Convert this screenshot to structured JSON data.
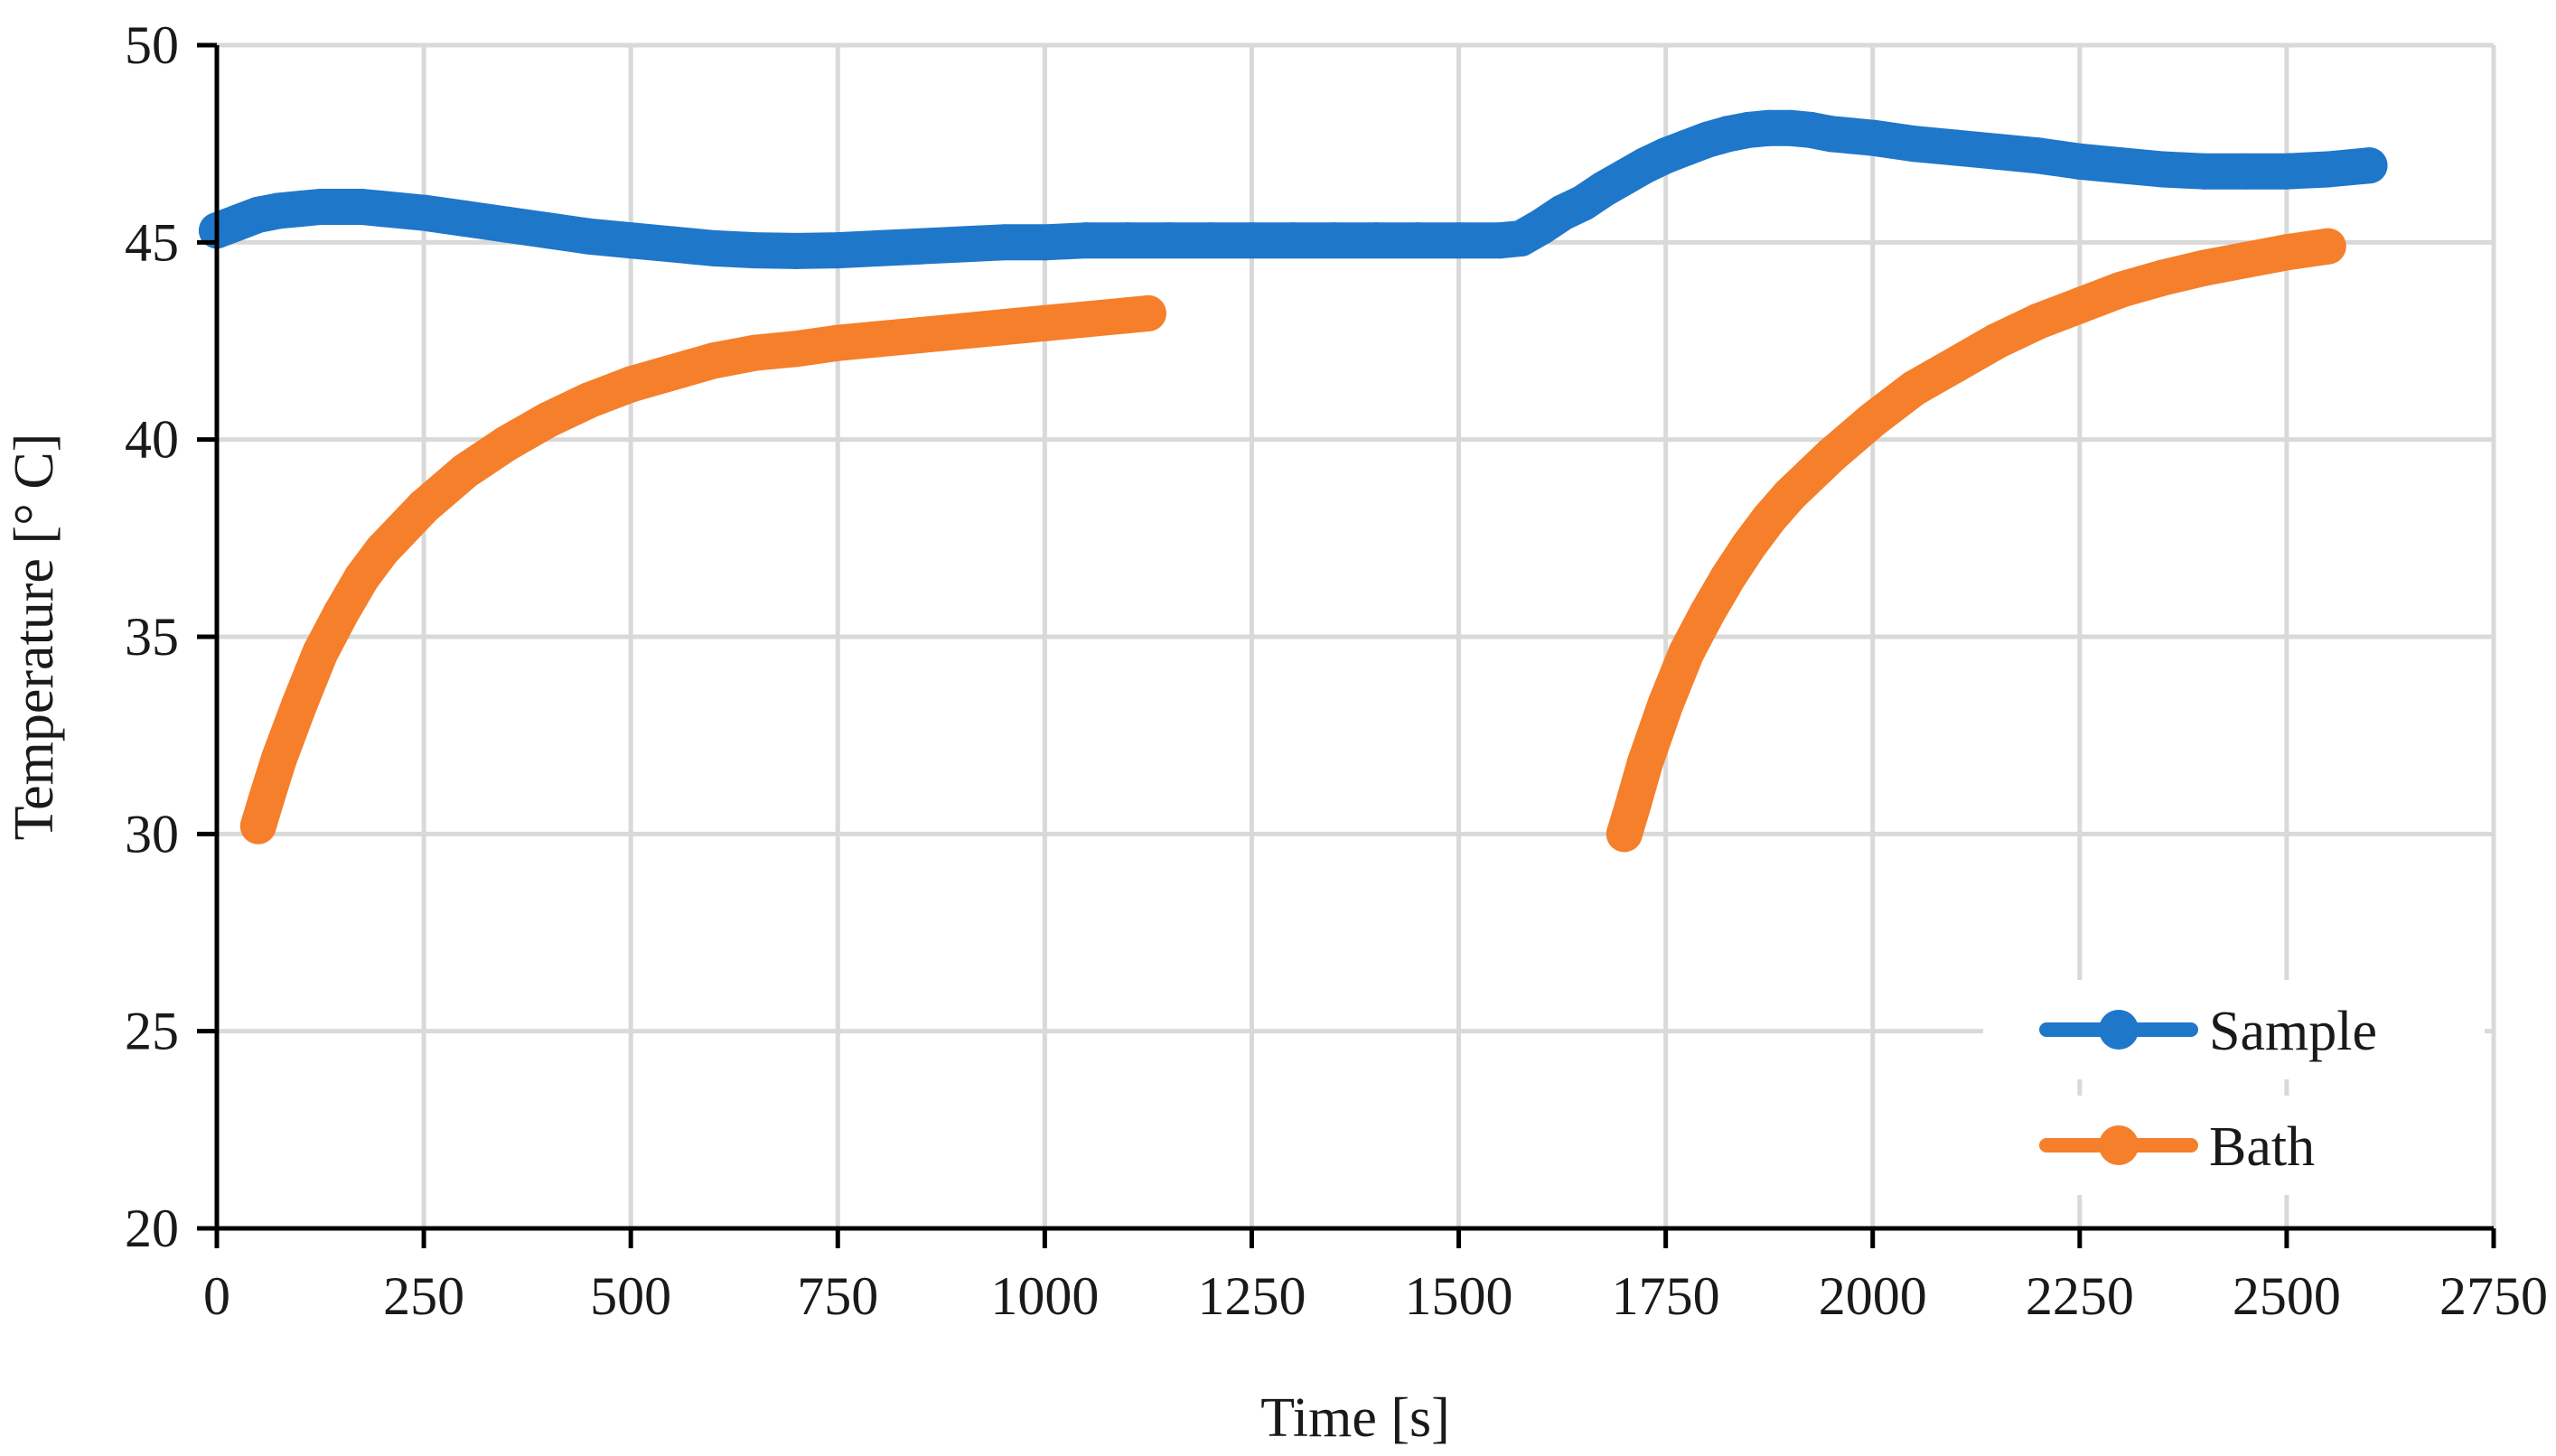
{
  "chart_data": {
    "type": "line",
    "xlabel": "Time [s]",
    "ylabel": "Temperature [° C]",
    "xlim": [
      0,
      2750
    ],
    "ylim": [
      20,
      50
    ],
    "xticks": [
      0,
      250,
      500,
      750,
      1000,
      1250,
      1500,
      1750,
      2000,
      2250,
      2500,
      2750
    ],
    "yticks": [
      20,
      25,
      30,
      35,
      40,
      45,
      50
    ],
    "grid": true,
    "legend_position": "bottom-right",
    "series": [
      {
        "name": "Sample",
        "color": "#1f77c9",
        "x": [
          0,
          25,
          50,
          75,
          100,
          125,
          150,
          175,
          200,
          250,
          300,
          350,
          400,
          450,
          500,
          550,
          600,
          650,
          700,
          750,
          800,
          850,
          900,
          950,
          1000,
          1050,
          1100,
          1150,
          1200,
          1250,
          1300,
          1350,
          1400,
          1450,
          1500,
          1550,
          1575,
          1600,
          1625,
          1650,
          1675,
          1700,
          1725,
          1750,
          1775,
          1800,
          1825,
          1850,
          1875,
          1900,
          1925,
          1950,
          1975,
          2000,
          2050,
          2100,
          2150,
          2200,
          2250,
          2300,
          2350,
          2400,
          2450,
          2500,
          2550,
          2600
        ],
        "y": [
          45.3,
          45.5,
          45.7,
          45.8,
          45.85,
          45.9,
          45.9,
          45.9,
          45.85,
          45.75,
          45.6,
          45.45,
          45.3,
          45.15,
          45.05,
          44.95,
          44.85,
          44.8,
          44.78,
          44.8,
          44.85,
          44.9,
          44.95,
          45.0,
          45.0,
          45.05,
          45.05,
          45.05,
          45.05,
          45.05,
          45.05,
          45.05,
          45.05,
          45.05,
          45.05,
          45.05,
          45.1,
          45.4,
          45.75,
          46.0,
          46.35,
          46.65,
          46.95,
          47.2,
          47.4,
          47.6,
          47.75,
          47.85,
          47.9,
          47.9,
          47.85,
          47.75,
          47.7,
          47.65,
          47.5,
          47.4,
          47.3,
          47.2,
          47.05,
          46.95,
          46.85,
          46.8,
          46.8,
          46.8,
          46.85,
          46.95
        ]
      },
      {
        "name": "Bath",
        "color": "#f57f2a",
        "x": [
          50,
          60,
          75,
          100,
          125,
          150,
          175,
          200,
          250,
          300,
          350,
          400,
          450,
          500,
          550,
          600,
          650,
          700,
          750,
          800,
          850,
          900,
          950,
          1000,
          1050,
          1100,
          1125,
          null,
          1700,
          1710,
          1725,
          1750,
          1775,
          1800,
          1825,
          1850,
          1875,
          1900,
          1950,
          2000,
          2050,
          2100,
          2150,
          2200,
          2250,
          2300,
          2350,
          2400,
          2450,
          2500,
          2550
        ],
        "y": [
          30.2,
          30.9,
          31.9,
          33.3,
          34.6,
          35.6,
          36.5,
          37.2,
          38.3,
          39.2,
          39.9,
          40.5,
          41.0,
          41.4,
          41.7,
          42.0,
          42.2,
          42.3,
          42.45,
          42.55,
          42.65,
          42.75,
          42.85,
          42.95,
          43.05,
          43.15,
          43.2,
          null,
          30.0,
          30.7,
          31.8,
          33.3,
          34.6,
          35.6,
          36.5,
          37.3,
          38.0,
          38.6,
          39.6,
          40.5,
          41.3,
          41.9,
          42.5,
          43.0,
          43.4,
          43.8,
          44.1,
          44.35,
          44.55,
          44.75,
          44.9
        ]
      }
    ]
  }
}
